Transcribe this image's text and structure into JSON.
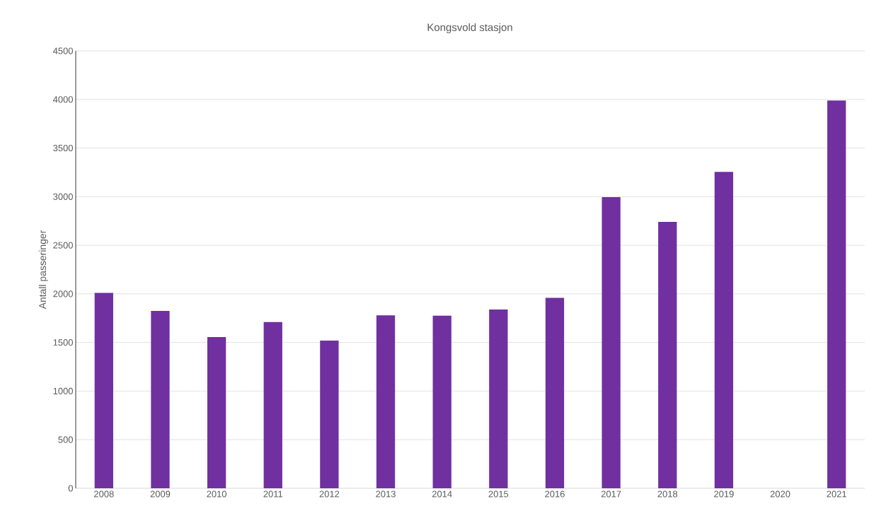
{
  "chart_data": {
    "type": "bar",
    "title": "Kongsvold stasjon",
    "ylabel": "Antall passeringer",
    "categories": [
      "2008",
      "2009",
      "2010",
      "2011",
      "2012",
      "2013",
      "2014",
      "2015",
      "2016",
      "2017",
      "2018",
      "2019",
      "2020",
      "2021"
    ],
    "values": [
      2010,
      1825,
      1555,
      1710,
      1520,
      1780,
      1775,
      1840,
      1960,
      2995,
      2740,
      3255,
      null,
      3990
    ],
    "color": "#7030a0",
    "ylim": [
      0,
      4500
    ],
    "yticks": [
      0,
      500,
      1000,
      1500,
      2000,
      2500,
      3000,
      3500,
      4000,
      4500
    ],
    "grid": "y"
  }
}
